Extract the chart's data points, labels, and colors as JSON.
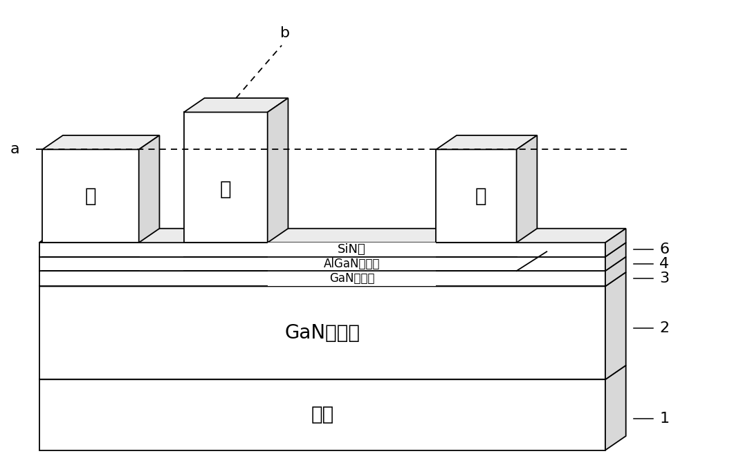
{
  "bg_color": "#ffffff",
  "line_color": "#000000",
  "label_a": "a",
  "label_b": "b",
  "label_source": "源",
  "label_gate": "栊",
  "label_drain": "漏",
  "label_SiN": "SiN层",
  "label_AlGaN": "AlGaN势帢层",
  "label_GaN_ch": "GaN沟道层",
  "label_GaN_buf": "GaN缓冲层",
  "label_substrate": "衬底",
  "num1": "1",
  "num2": "2",
  "num3": "3",
  "num4": "4",
  "num6": "6"
}
